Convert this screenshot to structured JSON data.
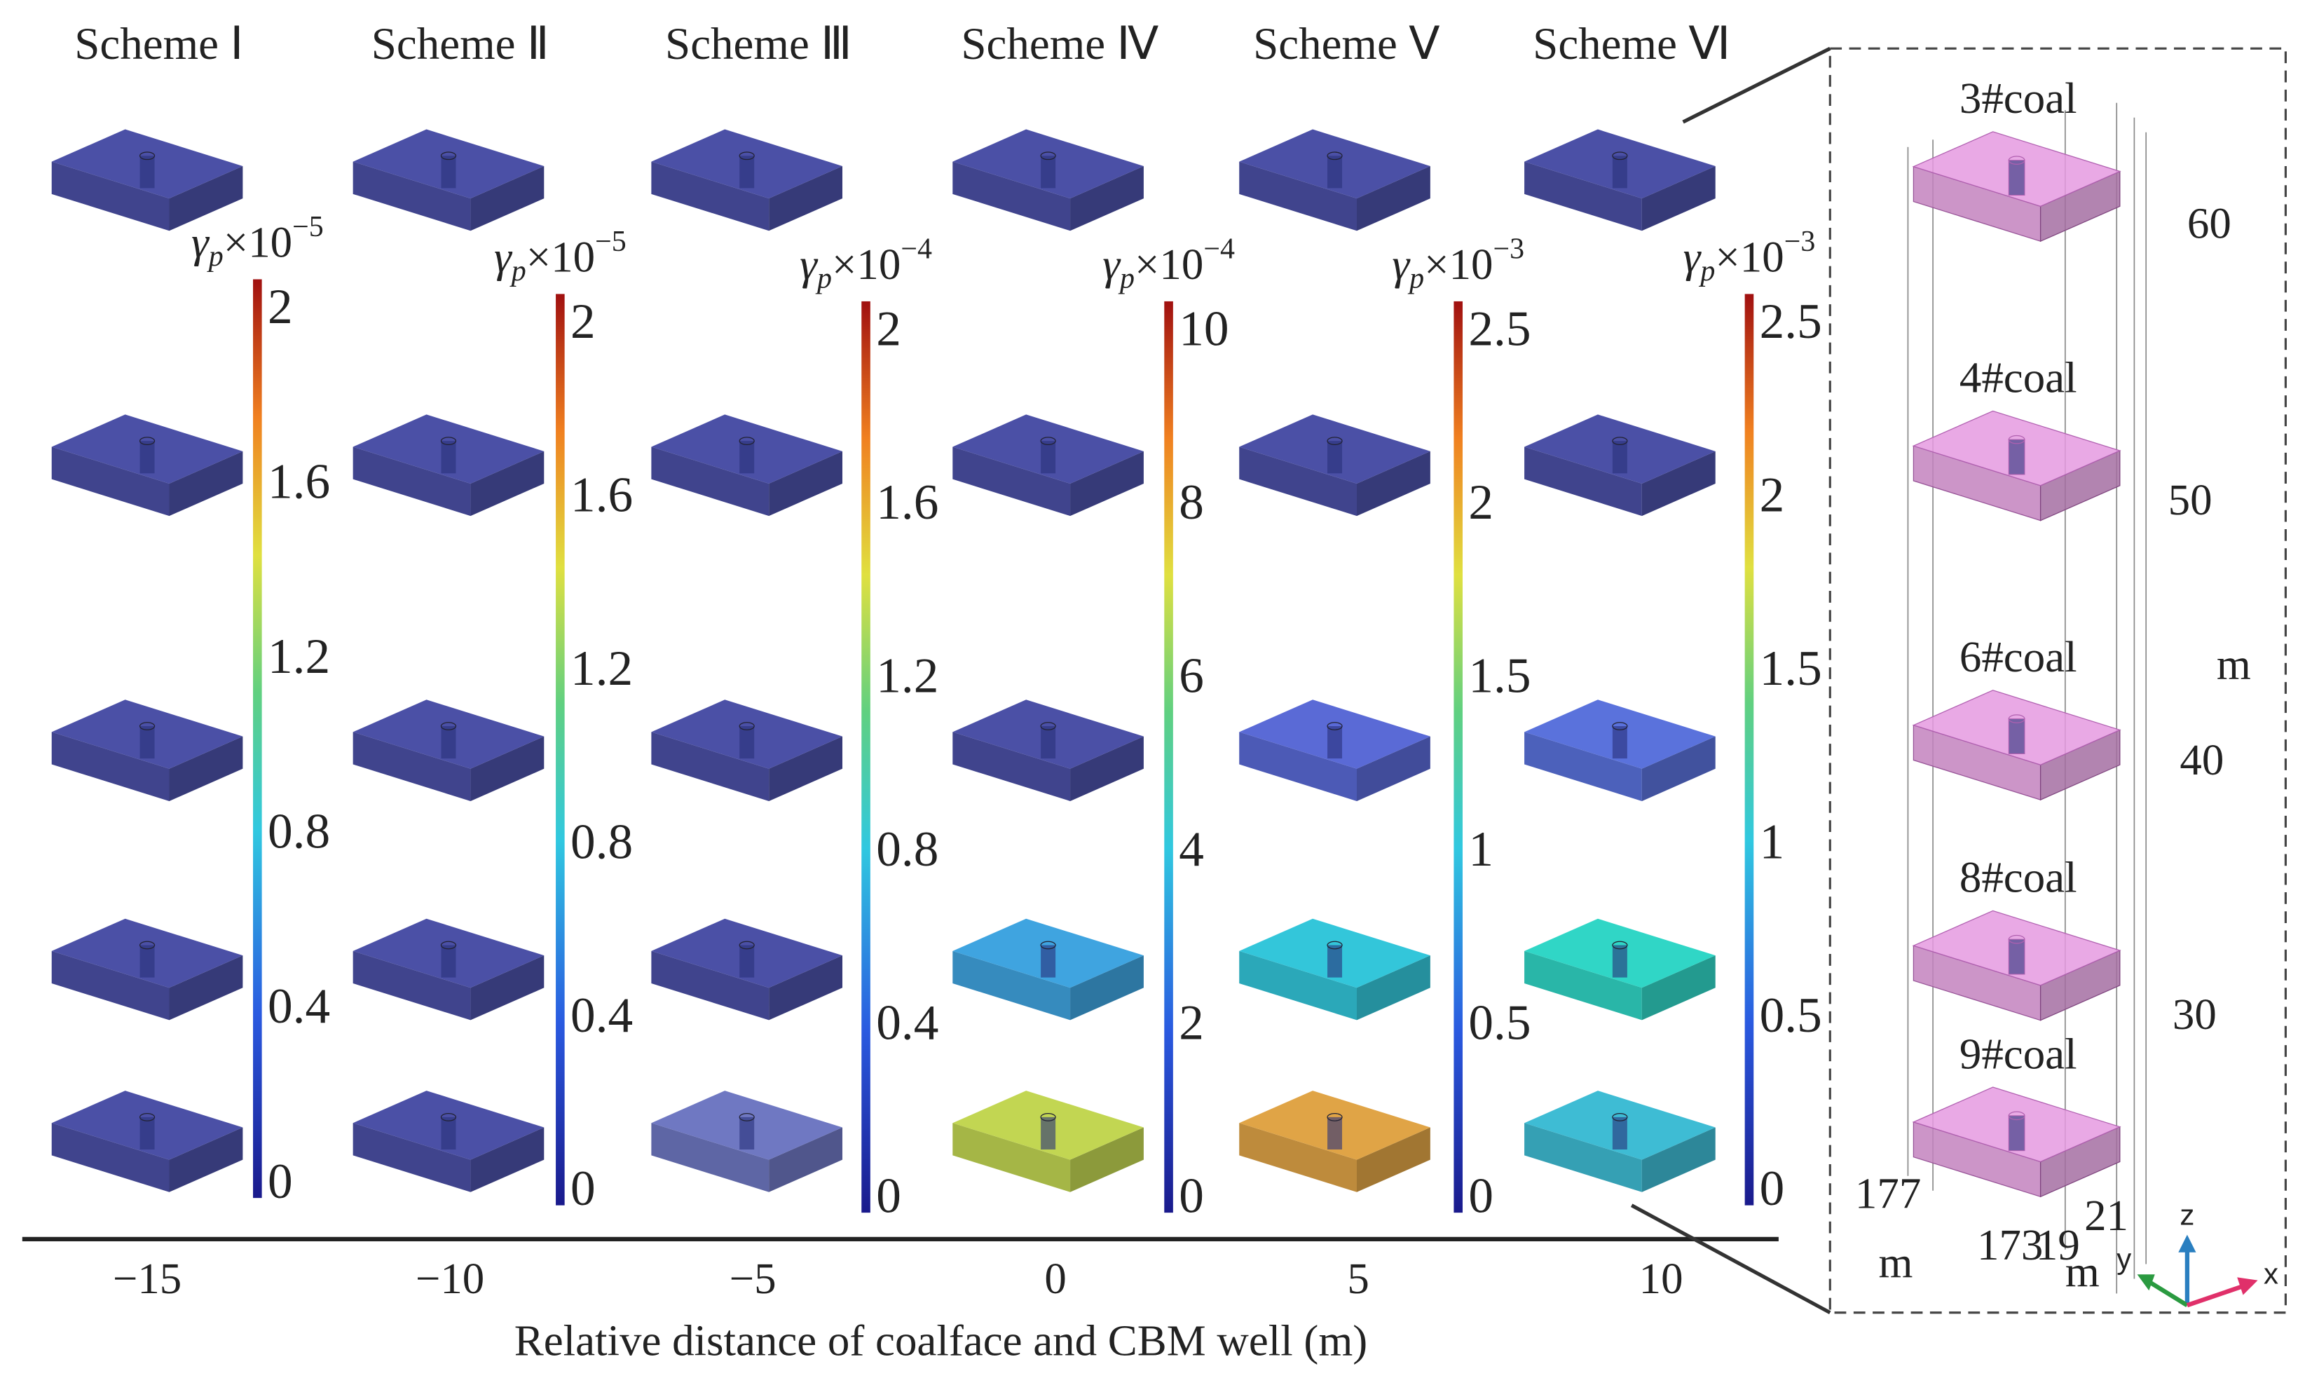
{
  "schemes": [
    "Scheme Ⅰ",
    "Scheme Ⅱ",
    "Scheme Ⅲ",
    "Scheme Ⅳ",
    "Scheme Ⅴ",
    "Scheme Ⅵ"
  ],
  "colorbars": [
    {
      "symbol": "γ",
      "subscript": "p",
      "multiplier": "×10",
      "exponent": "−5",
      "range": [
        0,
        2
      ],
      "ticks": [
        0,
        0.4,
        0.8,
        1.2,
        1.6,
        2
      ]
    },
    {
      "symbol": "γ",
      "subscript": "p",
      "multiplier": "×10",
      "exponent": "−5",
      "range": [
        0,
        2
      ],
      "ticks": [
        0,
        0.4,
        0.8,
        1.2,
        1.6,
        2
      ]
    },
    {
      "symbol": "γ",
      "subscript": "p",
      "multiplier": "×10",
      "exponent": "−4",
      "range": [
        0,
        2
      ],
      "ticks": [
        0,
        0.4,
        0.8,
        1.2,
        1.6,
        2
      ]
    },
    {
      "symbol": "γ",
      "subscript": "p",
      "multiplier": "×10",
      "exponent": "−4",
      "range": [
        0,
        10
      ],
      "ticks": [
        0,
        2,
        4,
        6,
        8,
        10
      ]
    },
    {
      "symbol": "γ",
      "subscript": "p",
      "multiplier": "×10",
      "exponent": "−3",
      "range": [
        0,
        2.5
      ],
      "ticks": [
        0,
        0.5,
        1,
        1.5,
        2,
        2.5
      ]
    },
    {
      "symbol": "γ",
      "subscript": "p",
      "multiplier": "×10",
      "exponent": "−3",
      "range": [
        0,
        2.5
      ],
      "ticks": [
        0,
        0.5,
        1,
        1.5,
        2,
        2.5
      ]
    }
  ],
  "panel_colors": [
    [
      "#4b50a6",
      "#4b50a6",
      "#4b50a6",
      "#4b50a6",
      "#4b50a6",
      "#4b50a6"
    ],
    [
      "#4b50a6",
      "#4b50a6",
      "#4b50a6",
      "#4b50a6",
      "#4b50a6",
      "#4b50a6"
    ],
    [
      "#4b50a6",
      "#4b50a6",
      "#4b50a6",
      "#4b50a6",
      "#5a6ad6",
      "#5a72dc"
    ],
    [
      "#4b50a6",
      "#4b50a6",
      "#4b50a6",
      "#3fa4e0",
      "#33c6da",
      "#30d6c6"
    ],
    [
      "#4b50a6",
      "#4b50a6",
      "#6f78c2",
      "#c2d652",
      "#e0a446",
      "#3ebcd4"
    ]
  ],
  "x_axis": {
    "label": "Relative distance of coalface and CBM well (m)",
    "ticks": [
      {
        "value": -15,
        "label": "−15"
      },
      {
        "value": -10,
        "label": "−10"
      },
      {
        "value": -5,
        "label": "−5"
      },
      0,
      5,
      10
    ]
  },
  "inset": {
    "coal_seams": [
      "3#coal",
      "4#coal",
      "6#coal",
      "8#coal",
      "9#coal"
    ],
    "z_ticks": [
      60,
      50,
      40,
      30
    ],
    "z_unit": "m",
    "y_ticks": [
      177,
      173
    ],
    "y_unit": "m",
    "x_ticks": [
      19,
      21
    ],
    "x_unit": "m",
    "triad": [
      "z",
      "y",
      "x"
    ]
  }
}
